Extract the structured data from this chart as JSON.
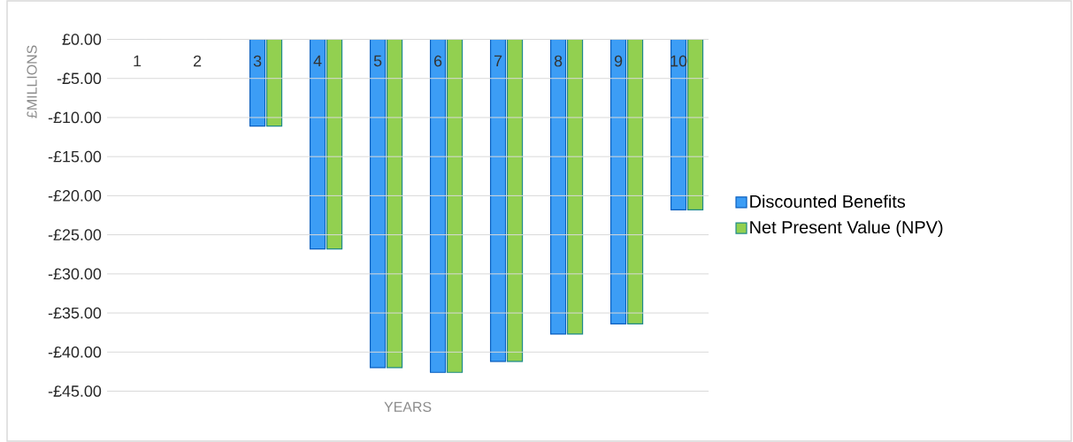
{
  "chart_data": {
    "type": "bar",
    "xlabel": "YEARS",
    "ylabel": "£MILLIONS",
    "categories": [
      "1",
      "2",
      "3",
      "4",
      "5",
      "6",
      "7",
      "8",
      "9",
      "10"
    ],
    "series": [
      {
        "name": "Discounted Benefits",
        "color": "#3c9df5",
        "values": [
          0,
          0,
          -11.1,
          -26.8,
          -42.0,
          -42.6,
          -41.2,
          -37.7,
          -36.4,
          -21.8
        ]
      },
      {
        "name": "Net Present Value (NPV)",
        "color": "#92d050",
        "values": [
          0,
          0,
          -11.1,
          -26.8,
          -42.0,
          -42.6,
          -41.2,
          -37.7,
          -36.4,
          -21.8
        ]
      }
    ],
    "ylim": [
      -45,
      0
    ],
    "yticks": [
      {
        "value": 0,
        "label": "£0.00"
      },
      {
        "value": -5,
        "label": "-£5.00"
      },
      {
        "value": -10,
        "label": "-£10.00"
      },
      {
        "value": -15,
        "label": "-£15.00"
      },
      {
        "value": -20,
        "label": "-£20.00"
      },
      {
        "value": -25,
        "label": "-£25.00"
      },
      {
        "value": -30,
        "label": "-£30.00"
      },
      {
        "value": -35,
        "label": "-£35.00"
      },
      {
        "value": -40,
        "label": "-£40.00"
      },
      {
        "value": -45,
        "label": "-£45.00"
      }
    ],
    "grid": "y",
    "legend": "right"
  }
}
